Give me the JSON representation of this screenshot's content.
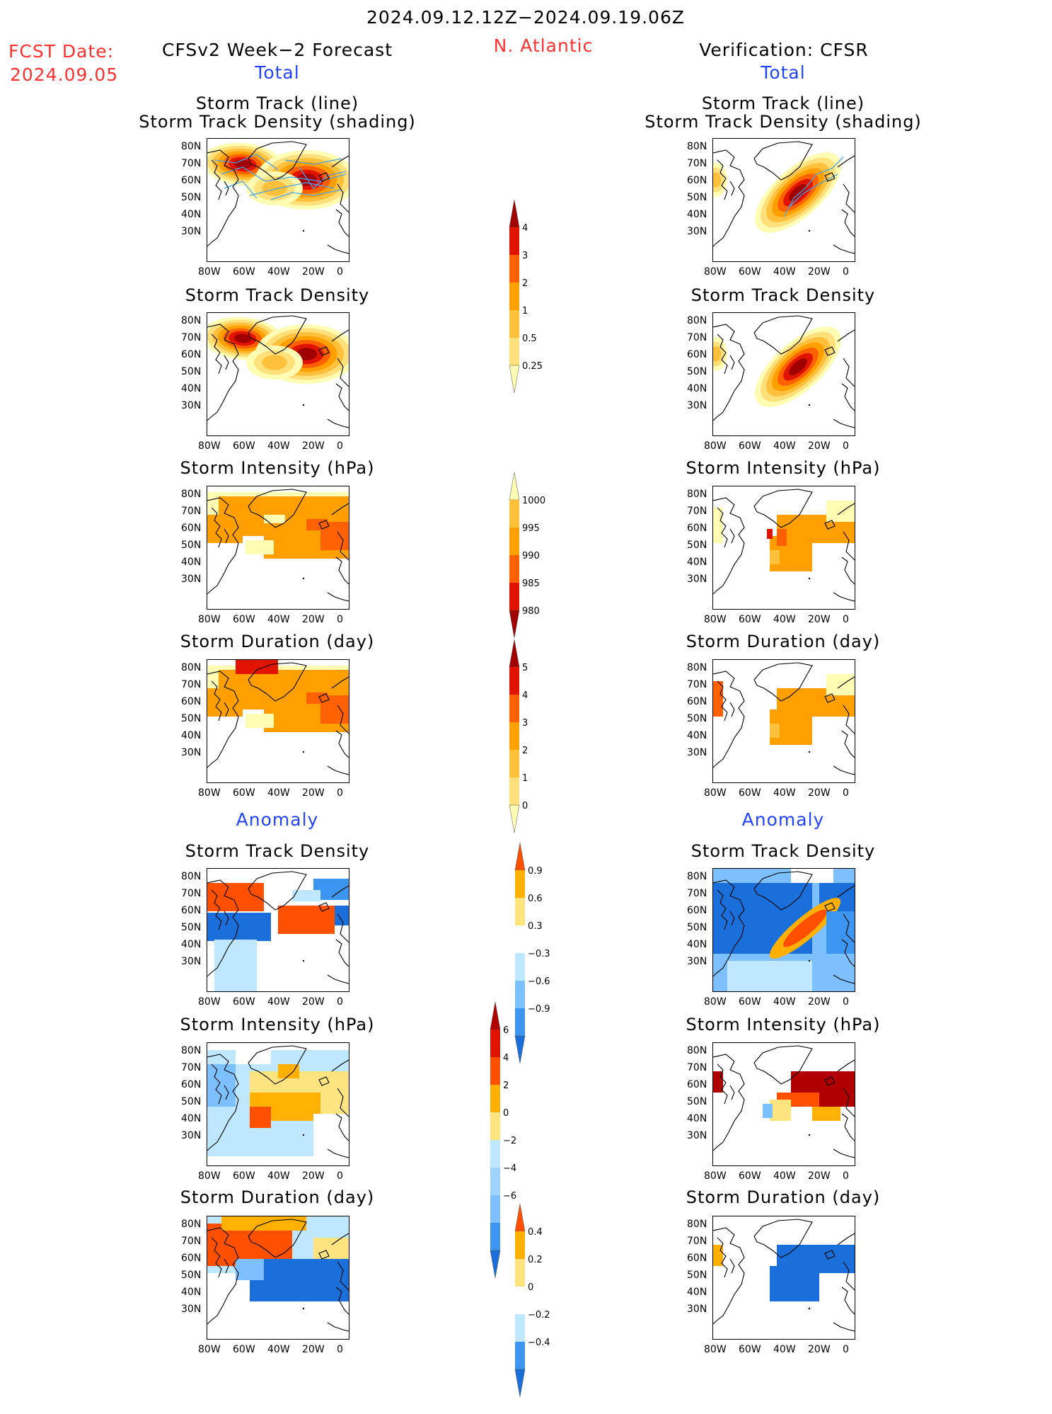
{
  "header": {
    "date_range": "2024.09.12.12Z−2024.09.19.06Z",
    "fcst_label": "FCST Date:",
    "fcst_date": "2024.09.05",
    "left_title": "CFSv2 Week−2 Forecast",
    "region": "N. Atlantic",
    "right_title": "Verification: CFSR",
    "total_label": "Total",
    "anomaly_label": "Anomaly"
  },
  "panel_titles": {
    "track_line": "Storm Track (line)",
    "track_shading": "Storm Track Density (shading)",
    "density": "Storm Track Density",
    "intensity": "Storm Intensity (hPa)",
    "duration": "Storm Duration (day)"
  },
  "axes": {
    "lat_labels": [
      "80N",
      "70N",
      "60N",
      "50N",
      "40N",
      "30N"
    ],
    "lon_labels": [
      "80W",
      "60W",
      "40W",
      "20W",
      "0"
    ]
  },
  "colors": {
    "total_scale": [
      "#fffcb4",
      "#ffe07a",
      "#ffc03c",
      "#ffa000",
      "#ff6000",
      "#e01400",
      "#a00000"
    ],
    "anom_scale": [
      "#1a6fdb",
      "#3c96f0",
      "#7cc0ff",
      "#bfe7ff",
      "#ffffff",
      "#ffe480",
      "#ffb000",
      "#ff5000",
      "#b00000"
    ],
    "track_line": "#4aa3e6",
    "title_red": "#ff3030",
    "title_blue": "#2244ff"
  },
  "colorbars": {
    "density_total": [
      "4",
      "3",
      "2",
      "1",
      "0.5",
      "0.25"
    ],
    "intensity_total": [
      "1000",
      "995",
      "990",
      "985",
      "980"
    ],
    "duration_total": [
      "5",
      "4",
      "3",
      "2",
      "1",
      "0"
    ],
    "density_anom": [
      "0.9",
      "0.6",
      "0.3",
      "−0.3",
      "−0.6",
      "−0.9"
    ],
    "intensity_anom": [
      "6",
      "4",
      "2",
      "0",
      "−2",
      "−4",
      "−6"
    ],
    "duration_anom": [
      "0.4",
      "0.2",
      "0",
      "−0.2",
      "−0.4"
    ]
  }
}
